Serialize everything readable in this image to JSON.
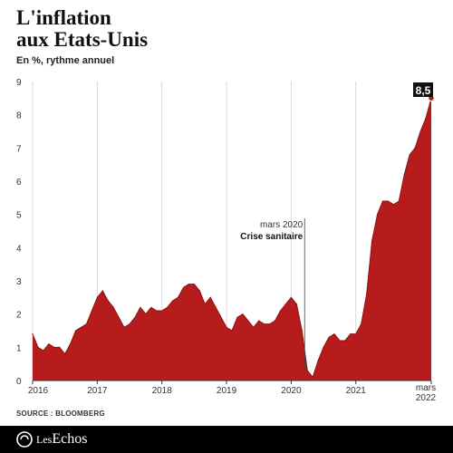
{
  "header": {
    "title_line1": "L'inflation",
    "title_line2": "aux Etats-Unis",
    "subtitle": "En %, rythme annuel"
  },
  "chart_data": {
    "type": "area",
    "title": "L'inflation aux Etats-Unis",
    "ylabel": "En %, rythme annuel",
    "xlabel": "",
    "ylim": [
      0,
      9
    ],
    "yticks": [
      0,
      1,
      2,
      3,
      4,
      5,
      6,
      7,
      8,
      9
    ],
    "xlim": [
      "2016-01",
      "2022-03"
    ],
    "xticks": [
      {
        "x": "2016-01",
        "label": "2016"
      },
      {
        "x": "2017-01",
        "label": "2017"
      },
      {
        "x": "2018-01",
        "label": "2018"
      },
      {
        "x": "2019-01",
        "label": "2019"
      },
      {
        "x": "2020-01",
        "label": "2020"
      },
      {
        "x": "2021-01",
        "label": "2021"
      },
      {
        "x": "2022-03",
        "label": "mars 2022"
      }
    ],
    "grid": "vertical",
    "fill_color": "#b71c1c",
    "series": [
      {
        "points": [
          [
            "2016-01",
            1.4
          ],
          [
            "2016-02",
            1.0
          ],
          [
            "2016-03",
            0.9
          ],
          [
            "2016-04",
            1.1
          ],
          [
            "2016-05",
            1.0
          ],
          [
            "2016-06",
            1.0
          ],
          [
            "2016-07",
            0.8
          ],
          [
            "2016-08",
            1.1
          ],
          [
            "2016-09",
            1.5
          ],
          [
            "2016-10",
            1.6
          ],
          [
            "2016-11",
            1.7
          ],
          [
            "2016-12",
            2.1
          ],
          [
            "2017-01",
            2.5
          ],
          [
            "2017-02",
            2.7
          ],
          [
            "2017-03",
            2.4
          ],
          [
            "2017-04",
            2.2
          ],
          [
            "2017-05",
            1.9
          ],
          [
            "2017-06",
            1.6
          ],
          [
            "2017-07",
            1.7
          ],
          [
            "2017-08",
            1.9
          ],
          [
            "2017-09",
            2.2
          ],
          [
            "2017-10",
            2.0
          ],
          [
            "2017-11",
            2.2
          ],
          [
            "2017-12",
            2.1
          ],
          [
            "2018-01",
            2.1
          ],
          [
            "2018-02",
            2.2
          ],
          [
            "2018-03",
            2.4
          ],
          [
            "2018-04",
            2.5
          ],
          [
            "2018-05",
            2.8
          ],
          [
            "2018-06",
            2.9
          ],
          [
            "2018-07",
            2.9
          ],
          [
            "2018-08",
            2.7
          ],
          [
            "2018-09",
            2.3
          ],
          [
            "2018-10",
            2.5
          ],
          [
            "2018-11",
            2.2
          ],
          [
            "2018-12",
            1.9
          ],
          [
            "2019-01",
            1.6
          ],
          [
            "2019-02",
            1.5
          ],
          [
            "2019-03",
            1.9
          ],
          [
            "2019-04",
            2.0
          ],
          [
            "2019-05",
            1.8
          ],
          [
            "2019-06",
            1.6
          ],
          [
            "2019-07",
            1.8
          ],
          [
            "2019-08",
            1.7
          ],
          [
            "2019-09",
            1.7
          ],
          [
            "2019-10",
            1.8
          ],
          [
            "2019-11",
            2.1
          ],
          [
            "2019-12",
            2.3
          ],
          [
            "2020-01",
            2.5
          ],
          [
            "2020-02",
            2.3
          ],
          [
            "2020-03",
            1.5
          ],
          [
            "2020-04",
            0.3
          ],
          [
            "2020-05",
            0.1
          ],
          [
            "2020-06",
            0.6
          ],
          [
            "2020-07",
            1.0
          ],
          [
            "2020-08",
            1.3
          ],
          [
            "2020-09",
            1.4
          ],
          [
            "2020-10",
            1.2
          ],
          [
            "2020-11",
            1.2
          ],
          [
            "2020-12",
            1.4
          ],
          [
            "2021-01",
            1.4
          ],
          [
            "2021-02",
            1.7
          ],
          [
            "2021-03",
            2.6
          ],
          [
            "2021-04",
            4.2
          ],
          [
            "2021-05",
            5.0
          ],
          [
            "2021-06",
            5.4
          ],
          [
            "2021-07",
            5.4
          ],
          [
            "2021-08",
            5.3
          ],
          [
            "2021-09",
            5.4
          ],
          [
            "2021-10",
            6.2
          ],
          [
            "2021-11",
            6.8
          ],
          [
            "2021-12",
            7.0
          ],
          [
            "2022-01",
            7.5
          ],
          [
            "2022-02",
            7.9
          ],
          [
            "2022-03",
            8.5
          ]
        ]
      }
    ],
    "annotations": [
      {
        "x": "2020-04",
        "line1": "mars 2020",
        "line2": "Crise sanitaire"
      },
      {
        "x": "2022-03",
        "y": 8.5,
        "label": "8,5",
        "style": "badge"
      }
    ]
  },
  "source": "SOURCE : BLOOMBERG",
  "footer": {
    "brand_prefix": "Les",
    "brand_name": "Echos",
    "logo_icon": "les-echos-logo-icon"
  }
}
